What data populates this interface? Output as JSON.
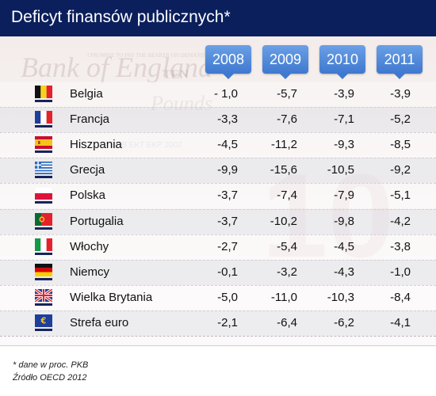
{
  "title": "Deficyt finansów publicznych*",
  "chart_data": {
    "type": "table",
    "columns": [
      "2008",
      "2009",
      "2010",
      "2011"
    ],
    "rows": [
      {
        "country": "Belgia",
        "flag": "belgium-flag-icon",
        "values": [
          "- 1,0",
          "-5,7",
          "-3,9",
          "-3,9"
        ]
      },
      {
        "country": "Francja",
        "flag": "france-flag-icon",
        "values": [
          "-3,3",
          "-7,6",
          "-7,1",
          "-5,2"
        ]
      },
      {
        "country": "Hiszpania",
        "flag": "spain-flag-icon",
        "values": [
          "-4,5",
          "-11,2",
          "-9,3",
          "-8,5"
        ]
      },
      {
        "country": "Grecja",
        "flag": "greece-flag-icon",
        "values": [
          "-9,9",
          "-15,6",
          "-10,5",
          "-9,2"
        ]
      },
      {
        "country": "Polska",
        "flag": "poland-flag-icon",
        "values": [
          "-3,7",
          "-7,4",
          "-7,9",
          "-5,1"
        ]
      },
      {
        "country": "Portugalia",
        "flag": "portugal-flag-icon",
        "values": [
          "-3,7",
          "-10,2",
          "-9,8",
          "-4,2"
        ]
      },
      {
        "country": "Włochy",
        "flag": "italy-flag-icon",
        "values": [
          "-2,7",
          "-5,4",
          "-4,5",
          "-3,8"
        ]
      },
      {
        "country": "Niemcy",
        "flag": "germany-flag-icon",
        "values": [
          "-0,1",
          "-3,2",
          "-4,3",
          "-1,0"
        ]
      },
      {
        "country": "Wielka Brytania",
        "flag": "uk-flag-icon",
        "values": [
          "-5,0",
          "-11,0",
          "-10,3",
          "-8,4"
        ]
      },
      {
        "country": "Strefa euro",
        "flag": "euro-flag-icon",
        "values": [
          "-2,1",
          "-6,4",
          "-6,2",
          "-4,1"
        ]
      }
    ]
  },
  "background": {
    "banknote_texts": [
      "Bank of England",
      "I PROMISE TO PAY THE BEARER ON DEMAND THE SUM OF",
      "TEN",
      "Pounds",
      "EKB EKT EKP 2002",
      "10"
    ]
  },
  "footnotes": {
    "note": "* dane w proc. PKB",
    "source": "Źródło OECD 2012"
  },
  "colors": {
    "title_bar": "#0b1f5c",
    "tab": "#3f78cf",
    "flag_base": "#16245a"
  }
}
